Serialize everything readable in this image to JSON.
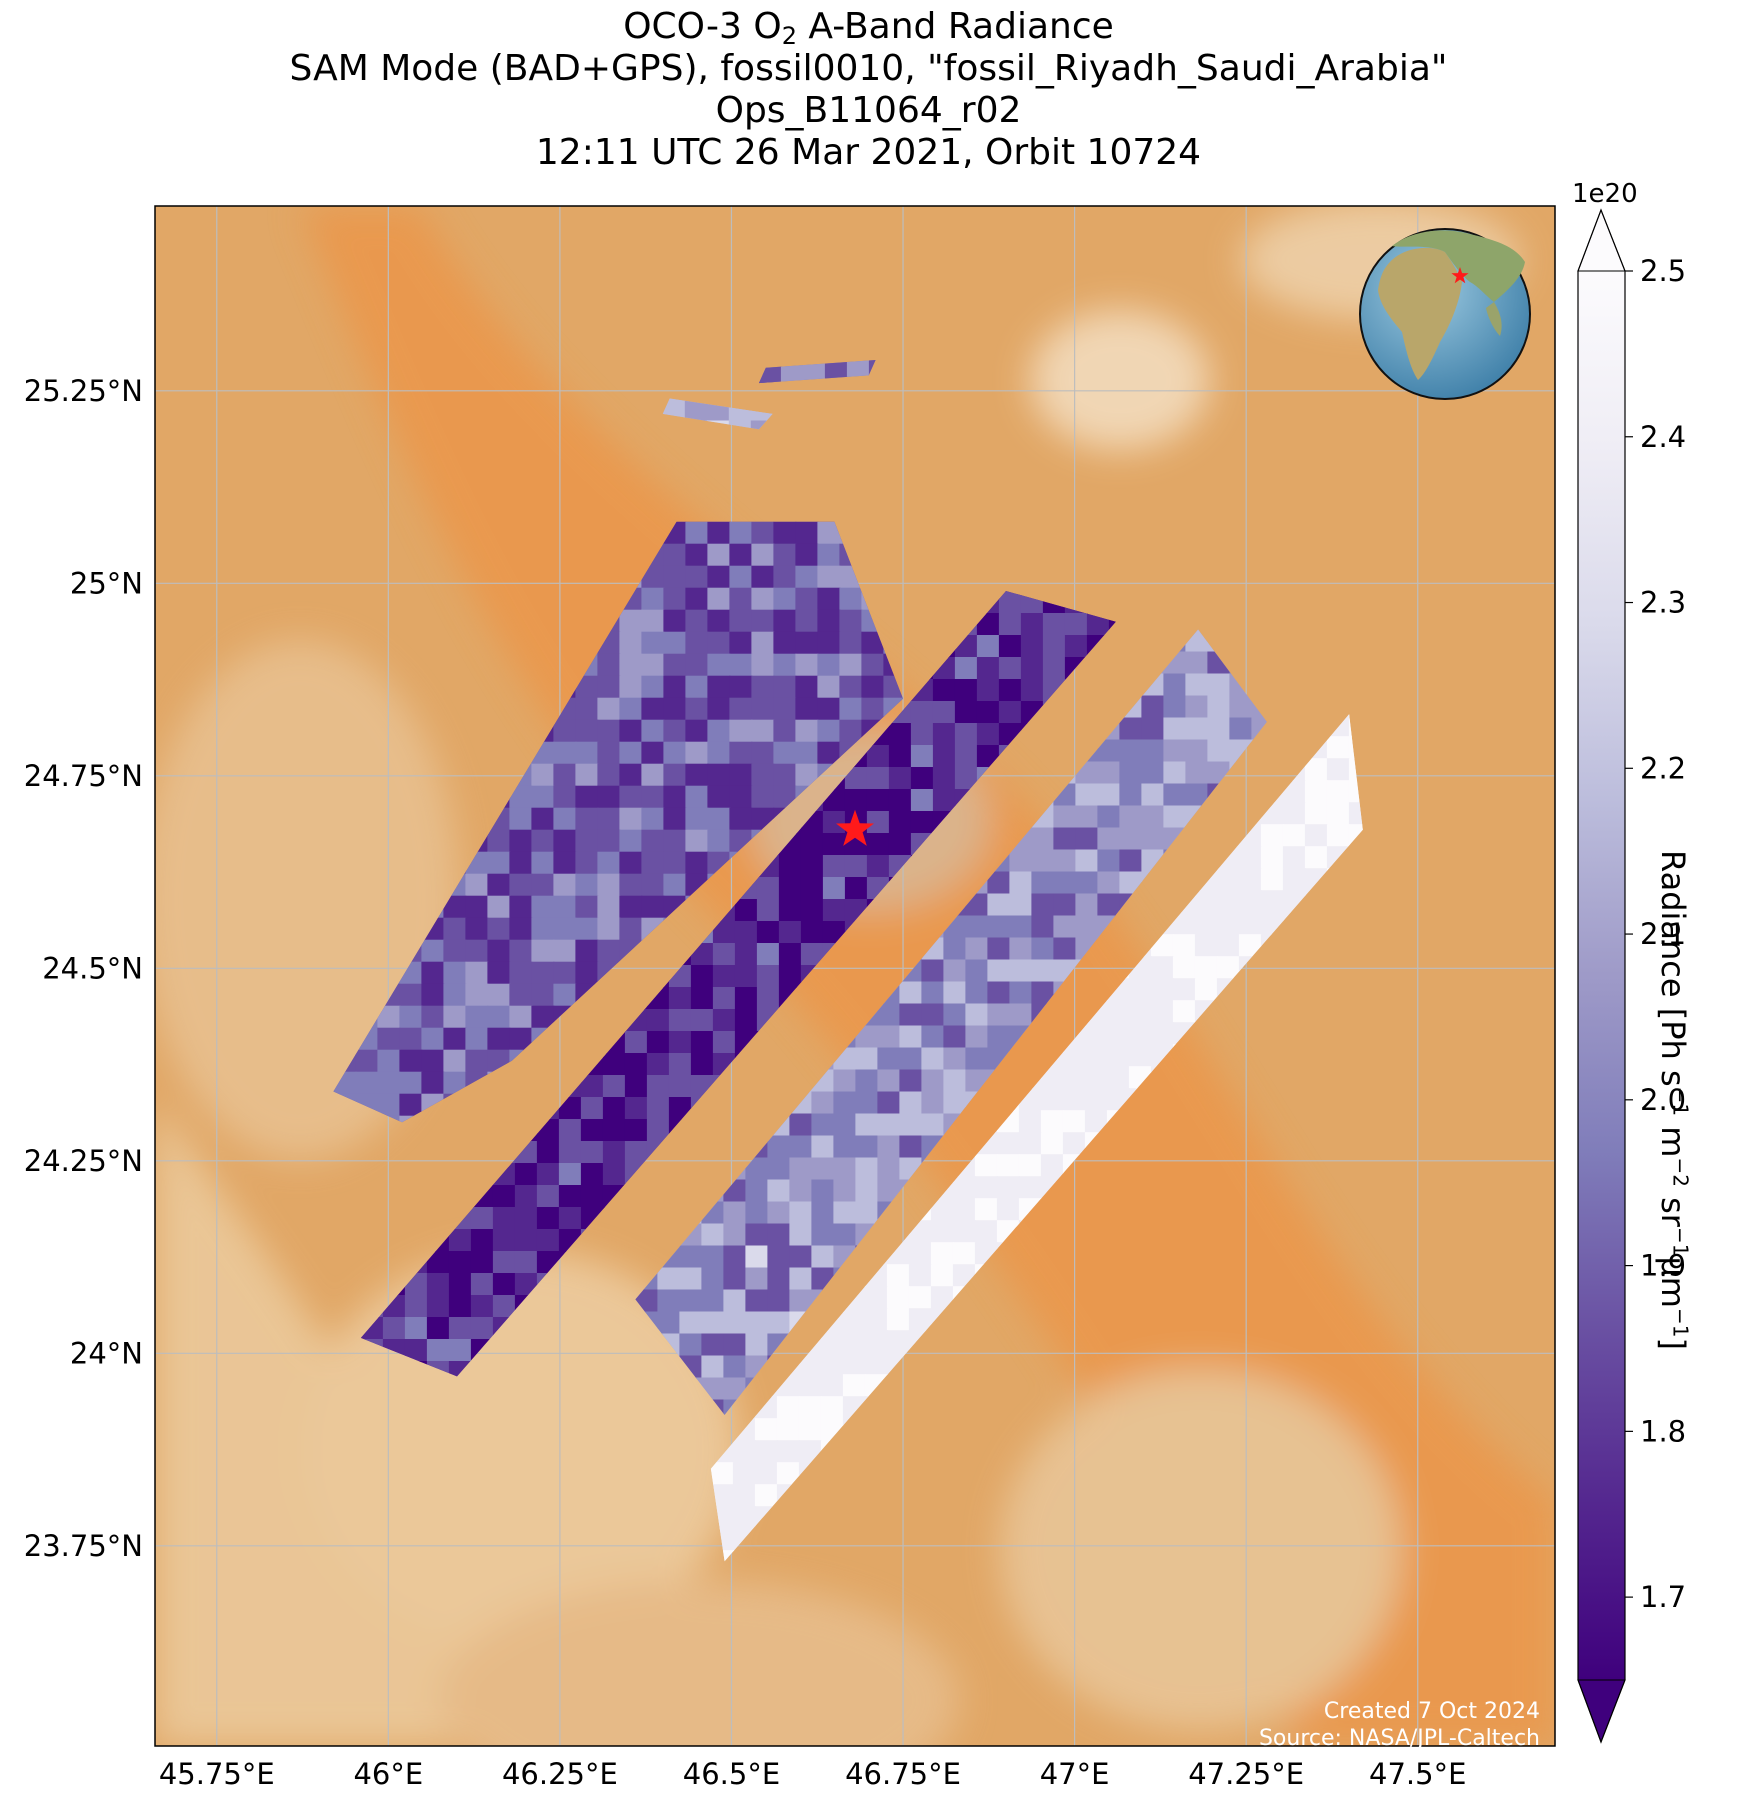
{
  "title": {
    "line1_prefix": "OCO-3 O",
    "line1_sub": "2",
    "line1_suffix": " A-Band Radiance",
    "line2": "SAM Mode (BAD+GPS), fossil0010, \"fossil_Riyadh_Saudi_Arabia\"",
    "line3": "Ops_B11064_r02",
    "line4": "12:11 UTC 26 Mar 2021, Orbit 10724"
  },
  "map": {
    "lon_ticks": [
      "45.75°E",
      "46°E",
      "46.25°E",
      "46.5°E",
      "46.75°E",
      "47°E",
      "47.25°E",
      "47.5°E"
    ],
    "lat_ticks": [
      "25.25°N",
      "25°N",
      "24.75°N",
      "24.5°N",
      "24.25°N",
      "24°N",
      "23.75°N"
    ],
    "target_marker": {
      "lon": 46.68,
      "lat": 24.68,
      "color": "#ff1a1a",
      "shape": "star"
    },
    "inset_globe": "globe-locator",
    "colors": {
      "desert": "#e4a865",
      "dune": "#ec9448",
      "gridline": "#bdbdbd"
    }
  },
  "colorbar": {
    "exponent": "1e20",
    "ticks": [
      "2.5",
      "2.4",
      "2.3",
      "2.2",
      "2.1",
      "2.0",
      "1.9",
      "1.8",
      "1.7"
    ],
    "min": 1.65,
    "max": 2.5,
    "label_prefix": "Radiance [Ph s",
    "label_parts": [
      "−1",
      " m",
      "−2",
      " sr",
      "−1",
      "μm",
      "−1",
      "]"
    ],
    "colormap": "Purples_r",
    "colors": [
      "#3f007d",
      "#54278f",
      "#6a51a3",
      "#807dba",
      "#9e9ac8",
      "#bcbddc",
      "#dadaeb",
      "#efedf5",
      "#fcfbfd"
    ]
  },
  "chart_data": {
    "type": "heatmap",
    "x_label": "",
    "y_label": "",
    "xlim": [
      45.66,
      47.7
    ],
    "ylim": [
      23.49,
      25.49
    ],
    "value_unit_multiplier": "1e20",
    "swaths": [
      {
        "id": 1,
        "corners": [
          [
            46.42,
            25.08
          ],
          [
            46.65,
            25.08
          ],
          [
            46.75,
            24.85
          ],
          [
            46.18,
            24.38
          ],
          [
            46.02,
            24.3
          ],
          [
            45.92,
            24.34
          ]
        ],
        "mean_radiance": 1.9
      },
      {
        "id": 2,
        "corners": [
          [
            46.9,
            24.99
          ],
          [
            47.06,
            24.95
          ],
          [
            46.1,
            23.97
          ],
          [
            45.96,
            24.02
          ]
        ],
        "mean_radiance": 1.74
      },
      {
        "id": 3,
        "corners": [
          [
            47.18,
            24.94
          ],
          [
            47.28,
            24.82
          ],
          [
            46.49,
            23.92
          ],
          [
            46.36,
            24.07
          ]
        ],
        "mean_radiance": 2.05
      },
      {
        "id": 4,
        "corners": [
          [
            47.4,
            24.83
          ],
          [
            47.42,
            24.68
          ],
          [
            46.49,
            23.73
          ],
          [
            46.47,
            23.85
          ]
        ],
        "mean_radiance": 2.42
      },
      {
        "id": 5,
        "corners": [
          [
            46.41,
            25.24
          ],
          [
            46.56,
            25.22
          ],
          [
            46.54,
            25.2
          ],
          [
            46.4,
            25.22
          ]
        ],
        "mean_radiance": 2.15
      },
      {
        "id": 6,
        "corners": [
          [
            46.55,
            25.28
          ],
          [
            46.71,
            25.29
          ],
          [
            46.7,
            25.27
          ],
          [
            46.54,
            25.26
          ]
        ],
        "mean_radiance": 2.0
      }
    ]
  },
  "credits": {
    "created": "Created 7 Oct 2024",
    "source": "Source: NASA/JPL-Caltech"
  }
}
